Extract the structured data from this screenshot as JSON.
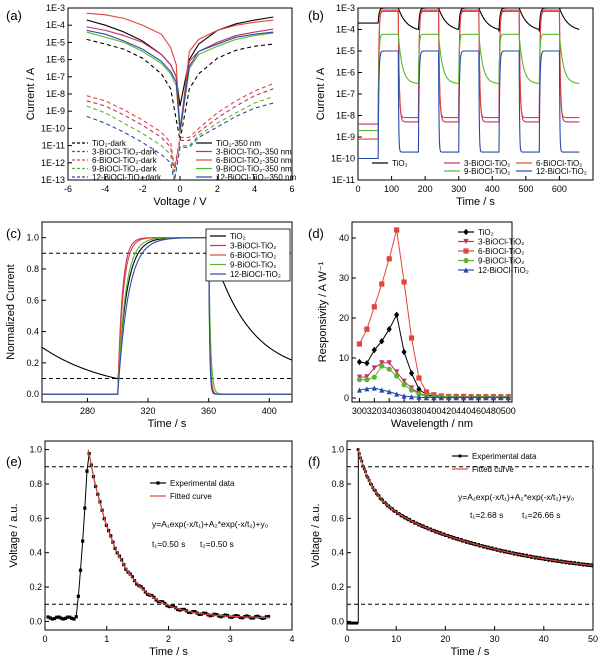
{
  "figure": {
    "panels": [
      "(a)",
      "(b)",
      "(c)",
      "(d)",
      "(e)",
      "(f)"
    ]
  },
  "chart_data": [
    {
      "panel": "(a)",
      "type": "line",
      "xlabel": "Voltage / V",
      "ylabel": "Current / A",
      "xlim": [
        -6,
        6
      ],
      "ylim_log10": [
        -13,
        -3
      ],
      "yscale": "log",
      "xticks": [
        -6,
        -4,
        -2,
        0,
        2,
        4,
        6
      ],
      "yticks": [
        "1E-13",
        "1E-12",
        "1E-11",
        "1E-10",
        "1E-9",
        "1E-8",
        "1E-7",
        "1E-6",
        "1E-5",
        "1E-4",
        "1E-3"
      ],
      "legend_placement": "bottom",
      "series": [
        {
          "name": "TiO₂-dark",
          "color": "#000000",
          "dash": true,
          "x": [
            -5,
            -4,
            -3,
            -2,
            -1,
            -0.5,
            0,
            0.5,
            1,
            2,
            3,
            4,
            5
          ],
          "y": [
            "1.5e-5",
            "8e-6",
            "4e-6",
            "1.2e-6",
            "1.5e-7",
            "2e-8",
            "2e-11",
            "2e-8",
            "1.5e-7",
            "1.2e-6",
            "3.5e-6",
            "6e-6",
            "8e-6"
          ]
        },
        {
          "name": "3-BiOCl-TiO₂-dark",
          "color": "#c0306a",
          "dash": true,
          "x": [
            -5,
            -4,
            -3,
            -2,
            -1,
            -0.5,
            -0.3,
            0,
            0.5,
            1,
            2,
            3,
            4,
            5
          ],
          "y": [
            "4e-9",
            "2e-9",
            "6e-10",
            "1.5e-10",
            "3e-11",
            "8e-12",
            "3e-13",
            "2e-11",
            "2e-11",
            "6e-11",
            "4e-10",
            "2e-9",
            "8e-9",
            "2e-8"
          ]
        },
        {
          "name": "6-BiOCl-TiO₂-dark",
          "color": "#e0463a",
          "dash": true,
          "x": [
            -5,
            -4,
            -3,
            -2,
            -1,
            -0.5,
            -0.3,
            0,
            0.5,
            1,
            2,
            3,
            4,
            5
          ],
          "y": [
            "8e-9",
            "4e-9",
            "1.2e-9",
            "3e-10",
            "6e-11",
            "1.5e-11",
            "5e-13",
            "3e-11",
            "3e-11",
            "1e-10",
            "8e-10",
            "4e-9",
            "1.5e-8",
            "4e-8"
          ]
        },
        {
          "name": "9-BiOCl-TiO₂-dark",
          "color": "#5ab52e",
          "dash": true,
          "x": [
            -5,
            -4,
            -3,
            -2,
            -1,
            -0.5,
            -0.3,
            0,
            0.5,
            1,
            2,
            3,
            4,
            5
          ],
          "y": [
            "2e-9",
            "8e-10",
            "2e-10",
            "5e-11",
            "1e-11",
            "3e-12",
            "1e-13",
            "1e-11",
            "1e-11",
            "4e-11",
            "2e-10",
            "8e-10",
            "3e-9",
            "7e-9"
          ]
        },
        {
          "name": "12-BiOCl-TiO₂-dark",
          "color": "#2b4aa8",
          "dash": true,
          "x": [
            -5,
            -4,
            -3,
            -2,
            -1,
            -0.5,
            -0.3,
            0,
            0.5,
            1,
            2,
            3,
            4,
            5
          ],
          "y": [
            "5e-10",
            "2e-10",
            "6e-11",
            "1.5e-11",
            "3e-12",
            "1e-12",
            "8e-14",
            "8e-12",
            "8e-12",
            "3e-11",
            "1.2e-10",
            "5e-10",
            "1.5e-9",
            "3e-9"
          ]
        },
        {
          "name": "TiO₂-350 nm",
          "color": "#000000",
          "dash": false,
          "x": [
            -5,
            -4,
            -3,
            -2,
            -1,
            -0.5,
            -0.2,
            0,
            0.5,
            1,
            2,
            3,
            4,
            5
          ],
          "y": [
            "2e-4",
            "1e-4",
            "4e-5",
            "1.2e-5",
            "2e-6",
            "5e-7",
            "1e-7",
            "2e-9",
            "1e-6",
            "8e-6",
            "5e-5",
            "1.2e-4",
            "2e-4",
            "3e-4"
          ]
        },
        {
          "name": "3-BiOCl-TiO₂-350 nm",
          "color": "#c0306a",
          "dash": false,
          "x": [
            -5,
            -4,
            -3,
            -2,
            -1,
            -0.5,
            -0.2,
            0,
            0.5,
            1,
            2,
            3,
            4,
            5
          ],
          "y": [
            "8e-5",
            "5e-5",
            "2.5e-5",
            "1e-5",
            "2e-6",
            "5e-7",
            "1e-7",
            "1e-10",
            "8e-7",
            "3e-6",
            "1e-5",
            "2.5e-5",
            "4e-5",
            "6e-5"
          ]
        },
        {
          "name": "6-BiOCl-TiO₂-350 nm",
          "color": "#e0463a",
          "dash": false,
          "x": [
            -5,
            -4,
            -3,
            -2,
            -1,
            -0.5,
            -0.2,
            0,
            0.5,
            1,
            2,
            3,
            4,
            5
          ],
          "y": [
            "5e-4",
            "4e-4",
            "2.5e-4",
            "1e-4",
            "3e-5",
            "5e-6",
            "5e-7",
            "5e-11",
            "3e-6",
            "1.5e-5",
            "5e-5",
            "1e-4",
            "1.5e-4",
            "2e-4"
          ]
        },
        {
          "name": "9-BiOCl-TiO₂-350 nm",
          "color": "#5ab52e",
          "dash": false,
          "x": [
            -5,
            -4,
            -3,
            -2,
            -1,
            -0.5,
            -0.2,
            0,
            0.5,
            1,
            2,
            3,
            4,
            5
          ],
          "y": [
            "4e-5",
            "2e-5",
            "1e-5",
            "3e-6",
            "6e-7",
            "1.5e-7",
            "3e-8",
            "5e-11",
            "3e-7",
            "2e-6",
            "6e-6",
            "1.5e-5",
            "2.5e-5",
            "3.5e-5"
          ]
        },
        {
          "name": "12-BiOCl-TiO₂-350 nm",
          "color": "#2b4aa8",
          "dash": false,
          "x": [
            -5,
            -4,
            -3,
            -2,
            -1,
            -0.5,
            -0.2,
            0,
            0.5,
            1,
            2,
            3,
            4,
            5
          ],
          "y": [
            "5e-5",
            "3e-5",
            "1.2e-5",
            "4e-6",
            "8e-7",
            "2e-7",
            "5e-8",
            "8e-11",
            "4e-7",
            "3e-6",
            "8e-6",
            "2e-5",
            "3e-5",
            "4e-5"
          ]
        }
      ]
    },
    {
      "panel": "(b)",
      "type": "line",
      "xlabel": "Time / s",
      "ylabel": "Current / A",
      "xlim": [
        0,
        700
      ],
      "ylim_log10": [
        -11,
        -3
      ],
      "yscale": "log",
      "xticks": [
        0,
        100,
        200,
        300,
        400,
        500,
        600
      ],
      "yticks": [
        "1E-11",
        "1E-10",
        "1E-9",
        "1E-8",
        "1E-7",
        "1E-6",
        "1E-5",
        "1E-4",
        "1E-3"
      ],
      "legend_placement": "bottom",
      "light_on": [
        60,
        180,
        300,
        420,
        540
      ],
      "light_off": [
        120,
        240,
        360,
        480,
        600
      ],
      "series": [
        {
          "name": "TiO₂",
          "color": "#000000",
          "on": "1e-3",
          "off_end": "8e-5",
          "base": "2e-4",
          "tau_on": 3,
          "tau_off": 25
        },
        {
          "name": "3-BiOCl-TiO₂",
          "color": "#c0306a",
          "on": "7e-4",
          "off_end": "5e-9",
          "base": "4e-9",
          "tau_on": 2,
          "tau_off": 3
        },
        {
          "name": "6-BiOCl-TiO₂",
          "color": "#e0463a",
          "on": "8e-4",
          "off_end": "8e-9",
          "base": "8e-10",
          "tau_on": 2,
          "tau_off": 2.5
        },
        {
          "name": "9-BiOCl-TiO₂",
          "color": "#5ab52e",
          "on": "6e-5",
          "off_end": "3e-7",
          "base": "2e-9",
          "tau_on": 2,
          "tau_off": 12
        },
        {
          "name": "12-BiOCl-TiO₂",
          "color": "#2b4aa8",
          "on": "1e-5",
          "off_end": "2e-10",
          "base": "1e-10",
          "tau_on": 2,
          "tau_off": 1.2
        }
      ]
    },
    {
      "panel": "(c)",
      "type": "line",
      "xlabel": "Time / s",
      "ylabel": "Normalized Current",
      "xlim": [
        250,
        415
      ],
      "ylim": [
        -0.05,
        1.1
      ],
      "xticks": [
        280,
        320,
        360,
        400
      ],
      "yticks": [
        0.0,
        0.2,
        0.4,
        0.6,
        0.8,
        1.0
      ],
      "hlines": [
        0.9,
        0.1
      ],
      "legend_placement": "top-right",
      "on_time": 300,
      "off_time": 360,
      "series": [
        {
          "name": "TiO₂",
          "color": "#000000",
          "tau_rise": 6,
          "tau_decay": 25,
          "start": 0.3
        },
        {
          "name": "3-BiOCl-TiO₂",
          "color": "#c0306a",
          "tau_rise": 3,
          "tau_decay": 0.8,
          "start": 0.0
        },
        {
          "name": "6-BiOCl-TiO₂",
          "color": "#e0463a",
          "tau_rise": 3.5,
          "tau_decay": 0.7,
          "start": 0.0
        },
        {
          "name": "9-BiOCl-TiO₂",
          "color": "#5ab52e",
          "tau_rise": 5,
          "tau_decay": 1.2,
          "start": 0.0
        },
        {
          "name": "12-BiOCl-TiO₂",
          "color": "#2b4aa8",
          "tau_rise": 7,
          "tau_decay": 0.6,
          "start": 0.0
        }
      ]
    },
    {
      "panel": "(d)",
      "type": "line",
      "xlabel": "Wavelength / nm",
      "ylabel": "Responsivity / A W⁻¹",
      "xlim": [
        290,
        505
      ],
      "ylim": [
        -1,
        44
      ],
      "xticks": [
        300,
        320,
        340,
        360,
        380,
        400,
        420,
        440,
        460,
        480,
        500
      ],
      "yticks": [
        0,
        10,
        20,
        30,
        40
      ],
      "legend_placement": "top-right",
      "x": [
        300,
        310,
        320,
        330,
        340,
        350,
        360,
        370,
        380,
        390,
        400,
        410,
        420,
        430,
        440,
        450,
        460,
        470,
        480,
        490,
        500
      ],
      "series": [
        {
          "name": "TiO₂",
          "color": "#000000",
          "marker": "diamond",
          "values": [
            9,
            8.7,
            12,
            14.2,
            17.2,
            20.8,
            11.5,
            6.2,
            2.2,
            0.8,
            0.5,
            0.4,
            0.3,
            0.3,
            0.3,
            0.3,
            0.3,
            0.3,
            0.3,
            0.3,
            0.3
          ]
        },
        {
          "name": "3-BiOCl-TiO₂",
          "color": "#c0306a",
          "marker": "triangle-down",
          "values": [
            5.2,
            5.3,
            7.5,
            8.8,
            8.8,
            6.5,
            4.2,
            2.5,
            1.2,
            0.5,
            0.3,
            0.3,
            0.3,
            0.3,
            0.3,
            0.3,
            0.3,
            0.3,
            0.3,
            0.3,
            0.3
          ]
        },
        {
          "name": "6-BiOCl-TiO₂",
          "color": "#e0463a",
          "marker": "square",
          "values": [
            13.5,
            17.2,
            22.8,
            28.5,
            34.8,
            42.0,
            29.0,
            15.0,
            5.0,
            1.5,
            0.8,
            0.5,
            0.4,
            0.4,
            0.4,
            0.3,
            0.3,
            0.3,
            0.3,
            0.3,
            0.3
          ]
        },
        {
          "name": "9-BiOCl-TiO₂",
          "color": "#5ab52e",
          "marker": "circle",
          "values": [
            4.6,
            4.6,
            5.2,
            8.0,
            7.2,
            5.5,
            3.3,
            2.0,
            1.0,
            0.4,
            0.3,
            0.3,
            0.3,
            0.2,
            0.2,
            0.2,
            0.2,
            0.2,
            0.2,
            0.2,
            0.2
          ]
        },
        {
          "name": "12-BiOCl-TiO₂",
          "color": "#2b4aa8",
          "marker": "triangle-up",
          "values": [
            2.0,
            2.3,
            2.5,
            2.0,
            1.6,
            1.0,
            0.5,
            0.3,
            0.2,
            0.1,
            0.1,
            0.1,
            0.1,
            0.1,
            0.1,
            0.1,
            0.1,
            0.1,
            0.1,
            0.1,
            0.1
          ]
        }
      ]
    },
    {
      "panel": "(e)",
      "type": "line",
      "xlabel": "Time / s",
      "ylabel": "Voltage / a.u.",
      "xlim": [
        0,
        4
      ],
      "ylim": [
        -0.05,
        1.05
      ],
      "xticks": [
        0,
        1,
        2,
        3,
        4
      ],
      "yticks": [
        0.0,
        0.2,
        0.4,
        0.6,
        0.8,
        1.0
      ],
      "hlines": [
        0.9,
        0.1
      ],
      "legend_placement": "right",
      "legend": [
        "Experimental data",
        "Fitted curve"
      ],
      "equation": "y=A₁exp(-x/t₁)+A₂*exp(-x/t₂)+y₀",
      "params": [
        "t₁=0.50 s",
        "t₂=0.50 s"
      ],
      "peak_t": 0.7,
      "on_t": 0.5,
      "end_t": 3.65,
      "baseline": 0.02,
      "tau": 0.5
    },
    {
      "panel": "(f)",
      "type": "line",
      "xlabel": "Time / s",
      "ylabel": "Voltage / a.u.",
      "xlim": [
        0,
        50
      ],
      "ylim": [
        -0.05,
        1.05
      ],
      "xticks": [
        0,
        10,
        20,
        30,
        40,
        50
      ],
      "yticks": [
        0.0,
        0.2,
        0.4,
        0.6,
        0.8,
        1.0
      ],
      "hlines": [
        0.9,
        0.1
      ],
      "legend_placement": "top-right",
      "legend": [
        "Experimental data",
        "Fitted curve"
      ],
      "equation": "y=A₁exp(-x/t₁)+A₂*exp(-x/t₂)+y₀",
      "params": [
        "t₁=2.68 s",
        "t₂=26.66 s"
      ],
      "peak_t": 2.3,
      "end_t": 50,
      "a1": 0.25,
      "t1": 2.68,
      "a2": 0.51,
      "t2": 26.66,
      "y0": 0.24
    }
  ]
}
